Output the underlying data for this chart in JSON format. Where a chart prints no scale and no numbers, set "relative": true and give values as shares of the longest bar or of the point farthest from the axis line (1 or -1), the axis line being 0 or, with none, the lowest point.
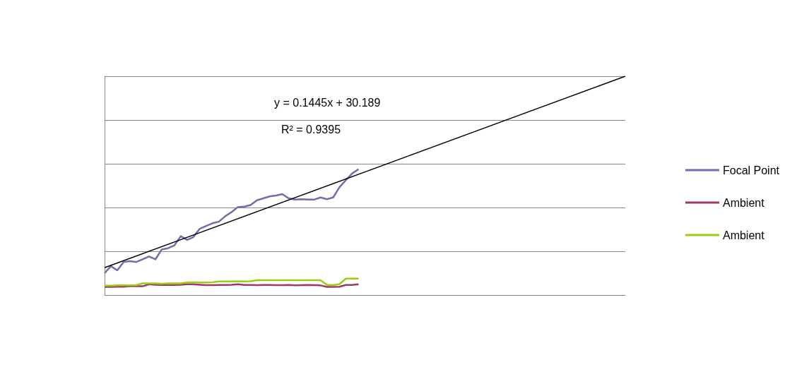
{
  "chart_data": {
    "type": "line",
    "relative": true,
    "categories": [
      null,
      null,
      null,
      null,
      null,
      null,
      null,
      null,
      null,
      null,
      null,
      null,
      null,
      null,
      null,
      null,
      null,
      null,
      null,
      null,
      null,
      null,
      null,
      null,
      null,
      null,
      null,
      null,
      null,
      null,
      null,
      null,
      null,
      null,
      null,
      null,
      null,
      null,
      null,
      null,
      null,
      null,
      null,
      null,
      null,
      null,
      null,
      null,
      null,
      null,
      null,
      null,
      null,
      null,
      null,
      null,
      null,
      null,
      null,
      null,
      null,
      null,
      null,
      null,
      null,
      null,
      null,
      null,
      null,
      null,
      null,
      null,
      null,
      null,
      null,
      null,
      null,
      null,
      null,
      null,
      null,
      null,
      null
    ],
    "series": [
      {
        "name": "Focal Point",
        "color": "#6f6fac",
        "values": [
          0.1,
          0.132,
          0.113,
          0.151,
          0.155,
          0.151,
          0.163,
          0.176,
          0.163,
          0.208,
          0.214,
          0.227,
          0.269,
          0.252,
          0.265,
          0.303,
          0.316,
          0.328,
          0.335,
          0.36,
          0.379,
          0.402,
          0.404,
          0.411,
          0.433,
          0.442,
          0.451,
          0.455,
          0.461,
          0.442,
          0.436,
          0.438,
          0.436,
          0.436,
          0.446,
          0.438,
          0.446,
          0.493,
          0.525,
          0.556,
          0.575,
          null,
          null,
          null,
          null,
          null,
          null,
          null,
          null,
          null,
          null,
          null,
          null,
          null,
          null,
          null,
          null,
          null,
          null,
          null,
          null,
          null,
          null,
          null,
          null,
          null,
          null,
          null,
          null,
          null,
          null,
          null,
          null,
          null,
          null,
          null,
          null,
          null,
          null,
          null,
          null,
          null,
          null
        ]
      },
      {
        "name": "Ambient",
        "color": "#a0376a",
        "values": [
          0.037,
          0.037,
          0.038,
          0.038,
          0.04,
          0.04,
          0.04,
          0.049,
          0.047,
          0.046,
          0.046,
          0.046,
          0.047,
          0.049,
          0.049,
          0.047,
          0.045,
          0.045,
          0.046,
          0.046,
          0.047,
          0.049,
          0.046,
          0.046,
          0.045,
          0.046,
          0.046,
          0.045,
          0.045,
          0.046,
          0.044,
          0.045,
          0.046,
          0.045,
          0.044,
          0.037,
          0.037,
          0.038,
          0.046,
          0.046,
          0.049,
          null,
          null,
          null,
          null,
          null,
          null,
          null,
          null,
          null,
          null,
          null,
          null,
          null,
          null,
          null,
          null,
          null,
          null,
          null,
          null,
          null,
          null,
          null,
          null,
          null,
          null,
          null,
          null,
          null,
          null,
          null,
          null,
          null,
          null,
          null,
          null,
          null,
          null,
          null,
          null,
          null,
          null
        ]
      },
      {
        "name": "Ambient",
        "color": "#9acd0f",
        "values": [
          0.043,
          0.043,
          0.044,
          0.044,
          0.044,
          0.045,
          0.053,
          0.053,
          0.053,
          0.052,
          0.053,
          0.053,
          0.053,
          0.057,
          0.058,
          0.057,
          0.057,
          0.058,
          0.062,
          0.062,
          0.062,
          0.063,
          0.062,
          0.063,
          0.068,
          0.068,
          0.068,
          0.068,
          0.068,
          0.068,
          0.068,
          0.068,
          0.068,
          0.068,
          0.068,
          0.047,
          0.045,
          0.05,
          0.075,
          0.075,
          0.075,
          null,
          null,
          null,
          null,
          null,
          null,
          null,
          null,
          null,
          null,
          null,
          null,
          null,
          null,
          null,
          null,
          null,
          null,
          null,
          null,
          null,
          null,
          null,
          null,
          null,
          null,
          null,
          null,
          null,
          null,
          null,
          null,
          null,
          null,
          null,
          null,
          null,
          null,
          null,
          null,
          null,
          null
        ]
      },
      {
        "color": "#000000",
        "values": [
          0.125,
          null,
          null,
          null,
          null,
          null,
          null,
          null,
          null,
          null,
          null,
          null,
          null,
          null,
          null,
          null,
          null,
          null,
          null,
          null,
          null,
          null,
          null,
          null,
          null,
          null,
          null,
          null,
          null,
          null,
          null,
          null,
          null,
          null,
          null,
          null,
          null,
          null,
          null,
          null,
          null,
          null,
          null,
          null,
          null,
          null,
          null,
          null,
          null,
          null,
          null,
          null,
          null,
          null,
          null,
          null,
          null,
          null,
          null,
          null,
          null,
          null,
          null,
          null,
          null,
          null,
          null,
          null,
          null,
          null,
          null,
          null,
          null,
          null,
          null,
          null,
          null,
          null,
          null,
          null,
          null,
          null,
          1.0
        ]
      }
    ],
    "annotations": [
      "y = 0.1445x + 30.189",
      "R² = 0.9395"
    ],
    "grid": "y",
    "legend": "right",
    "marker": "none",
    "line_style": "solid"
  }
}
